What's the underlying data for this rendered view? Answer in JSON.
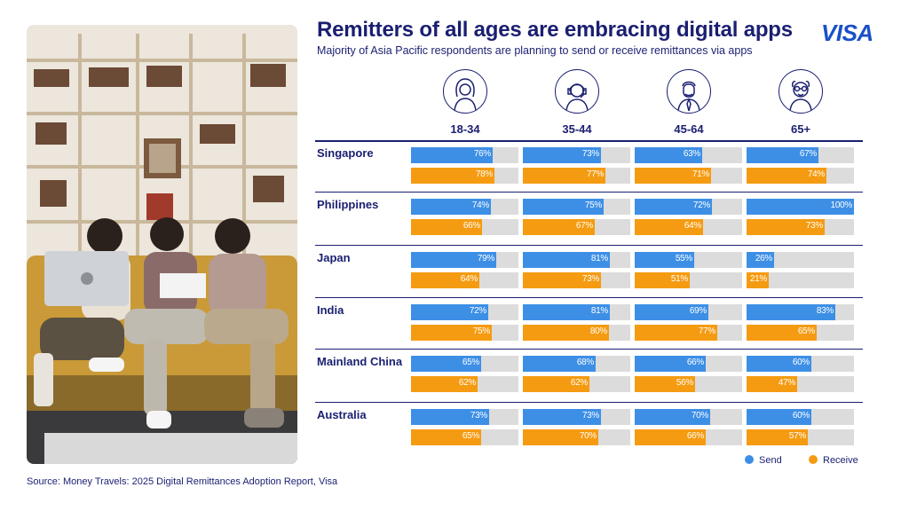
{
  "header": {
    "title": "Remitters of all ages are embracing digital apps",
    "subtitle": "Majority of Asia Pacific respondents are planning to send or receive remittances via apps",
    "brand": "VISA"
  },
  "colors": {
    "send": "#3d8fe6",
    "receive": "#f59b11",
    "track": "#dcdcdc",
    "navy": "#1a1f71"
  },
  "chart_data": {
    "type": "bar",
    "age_groups": [
      {
        "label": "18-34",
        "icon": "young-person-icon"
      },
      {
        "label": "35-44",
        "icon": "woman-headset-icon"
      },
      {
        "label": "45-64",
        "icon": "man-tie-icon"
      },
      {
        "label": "65+",
        "icon": "elder-glasses-icon"
      }
    ],
    "categories": [
      "Singapore",
      "Philippines",
      "Japan",
      "India",
      "Mainland China",
      "Australia"
    ],
    "series": [
      {
        "name": "Send",
        "values": [
          [
            76,
            73,
            63,
            67
          ],
          [
            74,
            75,
            72,
            100
          ],
          [
            79,
            81,
            55,
            26
          ],
          [
            72,
            81,
            69,
            83
          ],
          [
            65,
            68,
            66,
            60
          ],
          [
            73,
            73,
            70,
            60
          ]
        ]
      },
      {
        "name": "Receive",
        "values": [
          [
            78,
            77,
            71,
            74
          ],
          [
            66,
            67,
            64,
            73
          ],
          [
            64,
            73,
            51,
            21
          ],
          [
            75,
            80,
            77,
            65
          ],
          [
            62,
            62,
            56,
            47
          ],
          [
            65,
            70,
            66,
            57
          ]
        ]
      }
    ],
    "ylim": [
      0,
      100
    ]
  },
  "legend": {
    "send": "Send",
    "receive": "Receive"
  },
  "source": "Source: Money Travels: 2025 Digital Remittances Adoption Report, Visa"
}
